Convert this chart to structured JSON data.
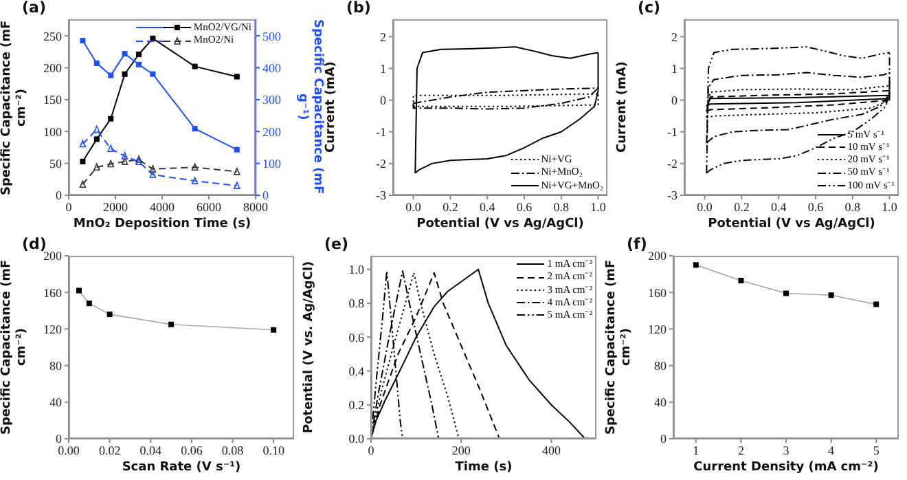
{
  "chart_data": [
    {
      "type": "line",
      "title": "(a)",
      "xlabel": "MnO₂ Deposition Time (s)",
      "ylabel": "Specific Capacitance (mF cm⁻²)",
      "y2label": "Specific Capacitance (mF g⁻¹)",
      "x": [
        600,
        1200,
        1800,
        2400,
        3000,
        3600,
        5400,
        7200
      ],
      "xlim": [
        0,
        8000
      ],
      "xticks": [
        0,
        2000,
        4000,
        6000,
        8000
      ],
      "ylim": [
        0,
        276
      ],
      "yticks": [
        0,
        50,
        100,
        150,
        200,
        250
      ],
      "y2lim": [
        0,
        552
      ],
      "y2ticks": [
        0,
        100,
        200,
        300,
        400,
        500
      ],
      "legend": "top right",
      "series": [
        {
          "name": "MnO2/VG/Ni",
          "color": "#000000",
          "values": [
            53,
            88,
            120,
            190,
            221,
            246,
            202,
            186
          ],
          "marker": "square",
          "line_style": "solid"
        },
        {
          "color": "#1f4fff",
          "axis": "y2",
          "values": [
            485,
            414,
            376,
            444,
            410,
            380,
            209,
            143
          ],
          "marker": "square",
          "line_style": "solid"
        },
        {
          "name": "MnO2/Ni",
          "color": "#333333",
          "values": [
            17,
            44,
            49,
            53,
            56,
            41,
            44,
            37
          ],
          "marker": "triangle",
          "line_style": "dashed"
        },
        {
          "color": "#1f4fff",
          "axis": "y2",
          "values": [
            161,
            206,
            146,
            123,
            105,
            65,
            45,
            30
          ],
          "marker": "triangle",
          "line_style": "dashed"
        }
      ]
    },
    {
      "type": "line",
      "title": "(b)",
      "xlabel": "Potential (V vs Ag/AgCl)",
      "ylabel": "Current (mA)",
      "xlim": [
        -0.11,
        1.05
      ],
      "xticks": [
        {
          "value": 0,
          "label": "0.0"
        },
        0.2,
        0.4,
        0.6,
        0.8,
        {
          "value": 1,
          "label": "1.0"
        }
      ],
      "ylim": [
        -3,
        2.55
      ],
      "yticks": [
        -3,
        -2,
        -1,
        0,
        1,
        2
      ],
      "legend": "bottom right",
      "series": [
        {
          "name": "Ni+VG",
          "color": "#000000",
          "line_style": "dotted",
          "x": [
            0,
            0,
            0.5,
            1
          ],
          "values": [
            -0.2,
            0.15,
            0.15,
            0.2
          ]
        },
        {
          "color": "#000000",
          "line_style": "dotted",
          "x": [
            0,
            0.5,
            1,
            1
          ],
          "values": [
            -0.2,
            -0.2,
            -0.15,
            0.2
          ]
        },
        {
          "name": "Ni+MnO₂",
          "color": "#000000",
          "line_style": "dashdot",
          "x": [
            0,
            0.2,
            0.4,
            0.6,
            0.8,
            1
          ],
          "values": [
            -0.1,
            0.1,
            0.25,
            0.3,
            0.35,
            0.38
          ]
        },
        {
          "color": "#000000",
          "line_style": "dashdot",
          "x": [
            0,
            0,
            0.2,
            0.4,
            0.6,
            0.8,
            0.95,
            1
          ],
          "values": [
            -0.1,
            -0.25,
            -0.25,
            -0.28,
            -0.25,
            -0.1,
            0.1,
            0.38
          ]
        },
        {
          "name": "Ni+VG+MnO₂",
          "color": "#000000",
          "line_style": "solid",
          "x": [
            0.01,
            0.02,
            0.05,
            0.15,
            0.3,
            0.45,
            0.55,
            0.65,
            0.75,
            0.85,
            0.95,
            1
          ],
          "values": [
            -2.3,
            1,
            1.5,
            1.6,
            1.62,
            1.65,
            1.68,
            1.55,
            1.4,
            1.32,
            1.45,
            1.5
          ]
        },
        {
          "color": "#000000",
          "line_style": "solid",
          "x": [
            0.01,
            0.03,
            0.1,
            0.2,
            0.3,
            0.4,
            0.5,
            0.6,
            0.7,
            0.8,
            0.9,
            0.98,
            1,
            1
          ],
          "values": [
            -2.3,
            -2.2,
            -2,
            -1.9,
            -1.87,
            -1.85,
            -1.75,
            -1.5,
            -1.2,
            -1,
            -0.6,
            -0.2,
            0.3,
            1.5
          ]
        }
      ]
    },
    {
      "type": "line",
      "title": "(c)",
      "xlabel": "Potential (V vs Ag/AgCl)",
      "ylabel": "Current (mA)",
      "xlim": [
        -0.11,
        1.05
      ],
      "xticks": [
        {
          "value": 0,
          "label": "0.0"
        },
        0.2,
        0.4,
        0.6,
        0.8,
        {
          "value": 1,
          "label": "1.0"
        }
      ],
      "ylim": [
        -3,
        2.55
      ],
      "yticks": [
        -3,
        -2,
        -1,
        0,
        1,
        2
      ],
      "legend": "bottom right",
      "series": [
        {
          "name": "5 mV s⁻¹",
          "color": "#000000",
          "line_style": "solid",
          "x": [
            0.01,
            0.03,
            0.5,
            1
          ],
          "values": [
            -0.2,
            0.05,
            0.08,
            0.15
          ]
        },
        {
          "color": "#000000",
          "line_style": "solid",
          "x": [
            0.01,
            0.03,
            0.5,
            1,
            1
          ],
          "values": [
            -0.2,
            -0.12,
            -0.08,
            0.05,
            0.15
          ]
        },
        {
          "name": "10 mV s⁻¹",
          "color": "#000000",
          "line_style": "dashed",
          "x": [
            0.01,
            0.03,
            0.3,
            0.7,
            1
          ],
          "values": [
            -0.35,
            0.1,
            0.15,
            0.2,
            0.3
          ]
        },
        {
          "color": "#000000",
          "line_style": "dashed",
          "x": [
            0.01,
            0.03,
            0.3,
            0.7,
            1,
            1
          ],
          "values": [
            -0.35,
            -0.3,
            -0.25,
            -0.15,
            0,
            0.3
          ]
        },
        {
          "name": "20 mV s⁻¹",
          "color": "#000000",
          "line_style": "dotted",
          "x": [
            0.01,
            0.03,
            0.2,
            0.5,
            0.8,
            1
          ],
          "values": [
            -0.55,
            0.25,
            0.33,
            0.35,
            0.33,
            0.45
          ]
        },
        {
          "color": "#000000",
          "line_style": "dotted",
          "x": [
            0.01,
            0.05,
            0.3,
            0.6,
            0.9,
            1,
            1
          ],
          "values": [
            -0.55,
            -0.5,
            -0.45,
            -0.4,
            -0.25,
            0,
            0.45
          ]
        },
        {
          "name": "50 mV s⁻¹",
          "color": "#000000",
          "line_style": "dashdot",
          "x": [
            0.01,
            0.02,
            0.05,
            0.2,
            0.4,
            0.55,
            0.7,
            0.85,
            0.97,
            1
          ],
          "values": [
            -1.35,
            0.4,
            0.65,
            0.78,
            0.8,
            0.87,
            0.78,
            0.72,
            0.8,
            0.88
          ]
        },
        {
          "color": "#000000",
          "line_style": "dashdot",
          "x": [
            0.01,
            0.05,
            0.15,
            0.3,
            0.45,
            0.55,
            0.7,
            0.85,
            0.95,
            1,
            1
          ],
          "values": [
            -1.35,
            -1.15,
            -1,
            -0.95,
            -0.93,
            -0.8,
            -0.6,
            -0.45,
            -0.2,
            0.2,
            0.88
          ]
        },
        {
          "name": "100 mV s⁻¹",
          "color": "#000000",
          "line_style": "dashdotdot",
          "x": [
            0.01,
            0.02,
            0.05,
            0.15,
            0.3,
            0.45,
            0.55,
            0.65,
            0.75,
            0.85,
            0.95,
            1
          ],
          "values": [
            -2.3,
            1,
            1.5,
            1.6,
            1.62,
            1.65,
            1.68,
            1.55,
            1.4,
            1.32,
            1.45,
            1.5
          ]
        },
        {
          "color": "#000000",
          "line_style": "dashdotdot",
          "x": [
            0.01,
            0.03,
            0.1,
            0.2,
            0.3,
            0.4,
            0.5,
            0.6,
            0.7,
            0.8,
            0.9,
            0.98,
            1,
            1
          ],
          "values": [
            -2.3,
            -2.2,
            -2,
            -1.9,
            -1.87,
            -1.85,
            -1.75,
            -1.5,
            -1.2,
            -1,
            -0.6,
            -0.2,
            0.3,
            1.5
          ]
        }
      ]
    },
    {
      "type": "line",
      "title": "(d)",
      "xlabel": "Scan Rate (V s⁻¹)",
      "ylabel": "Specific Capacitance (mF cm⁻²)",
      "x": [
        0.005,
        0.01,
        0.02,
        0.05,
        0.1
      ],
      "xlim": [
        0,
        0.11
      ],
      "xticks": [
        {
          "value": 0,
          "label": "0.00"
        },
        0.02,
        0.04,
        0.06,
        0.08,
        {
          "value": 0.1,
          "label": "0.10"
        }
      ],
      "ylim": [
        0,
        200
      ],
      "yticks": [
        0,
        40,
        80,
        120,
        160,
        200
      ],
      "marker": "square",
      "series": [
        {
          "color": "#000000",
          "values": [
            162,
            148,
            136,
            125,
            119
          ]
        }
      ]
    },
    {
      "type": "line",
      "title": "(e)",
      "xlabel": "Time (s)",
      "ylabel": "Potential (V vs. Ag/AgCl)",
      "xlim": [
        0,
        500
      ],
      "xticks": [
        0,
        200,
        400
      ],
      "ylim": [
        0,
        1.08
      ],
      "yticks": [
        {
          "value": 0,
          "label": "0.0"
        },
        0.2,
        0.4,
        0.6,
        0.8,
        {
          "value": 1,
          "label": "1.0"
        }
      ],
      "legend": "top right",
      "series": [
        {
          "name": "1 mA cm⁻²",
          "color": "#000000",
          "line_style": "solid",
          "x": [
            0,
            10,
            30,
            60,
            100,
            140,
            170,
            238,
            260,
            300,
            350,
            400,
            440,
            475
          ],
          "values": [
            0,
            0.1,
            0.22,
            0.38,
            0.6,
            0.78,
            0.87,
            1,
            0.8,
            0.55,
            0.35,
            0.2,
            0.1,
            0
          ]
        },
        {
          "name": "2 mA cm⁻²",
          "color": "#000000",
          "line_style": "dashed",
          "x": [
            0,
            20,
            60,
            100,
            140,
            160,
            200,
            240,
            285
          ],
          "values": [
            0,
            0.2,
            0.5,
            0.72,
            0.98,
            0.8,
            0.55,
            0.3,
            0
          ]
        },
        {
          "name": "3 mA cm⁻²",
          "color": "#000000",
          "line_style": "dotted",
          "x": [
            0,
            20,
            50,
            95,
            110,
            140,
            170,
            195
          ],
          "values": [
            0,
            0.25,
            0.55,
            0.98,
            0.8,
            0.5,
            0.25,
            0
          ]
        },
        {
          "name": "4 mA cm⁻²",
          "color": "#000000",
          "line_style": "dashdot",
          "x": [
            0,
            15,
            40,
            70,
            85,
            110,
            135,
            150
          ],
          "values": [
            0,
            0.25,
            0.6,
            0.99,
            0.8,
            0.5,
            0.2,
            0
          ]
        },
        {
          "name": "5 mA cm⁻²",
          "color": "#000000",
          "line_style": "dashdotdot",
          "x": [
            0,
            10,
            25,
            35,
            45,
            55,
            65,
            70
          ],
          "values": [
            0,
            0.3,
            0.7,
            0.99,
            0.7,
            0.4,
            0.1,
            0
          ]
        }
      ]
    },
    {
      "type": "line",
      "title": "(f)",
      "xlabel": "Current Density (mA cm⁻²)",
      "ylabel": "Specific Capacitance (mF cm⁻²)",
      "x": [
        1,
        2,
        3,
        4,
        5
      ],
      "xlim": [
        0.5,
        5.5
      ],
      "xticks": [
        1,
        2,
        3,
        4,
        5
      ],
      "ylim": [
        0,
        200
      ],
      "yticks": [
        0,
        40,
        80,
        120,
        160,
        200
      ],
      "marker": "square",
      "series": [
        {
          "color": "#000000",
          "values": [
            190,
            173,
            159,
            157,
            147
          ]
        }
      ]
    }
  ]
}
